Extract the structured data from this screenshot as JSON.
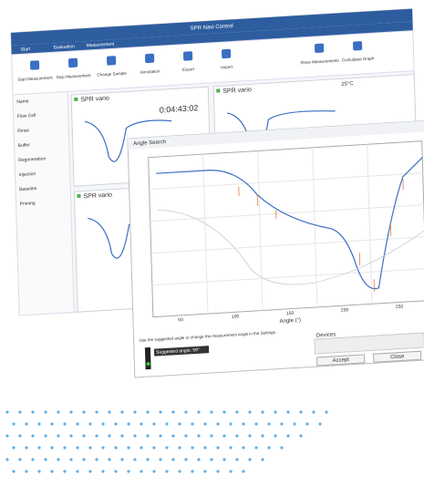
{
  "back_window": {
    "title": "SPR Navi Control",
    "tabs": [
      "Start",
      "Evaluation",
      "Measurement"
    ],
    "ribbon": [
      "Start Measurement",
      "Stop Measurement",
      "Change Sample",
      "Annotation",
      "Export",
      "Import",
      "Show Measurements",
      "Cumulated Graph"
    ],
    "sidebar": [
      "Name",
      "Flow Cell",
      "Rinse",
      "Buffer",
      "Regeneration",
      "Injection",
      "Baseline",
      "Priming"
    ],
    "panels": [
      "SPR vario",
      "SPR vario",
      "SPR vario"
    ],
    "temperature": "25°C",
    "timer": "0:04:43:02"
  },
  "dialog": {
    "title": "Angle Search",
    "x_axis_label": "Angle (°)",
    "x_ticks": [
      "50",
      "100",
      "150",
      "200",
      "250"
    ],
    "status": "Suggested angle: 59°",
    "hint": "Use the suggested angle or change the measurement angle in the Settings.",
    "list_title": "Devices",
    "buttons": [
      "Accept",
      "Close"
    ]
  }
}
